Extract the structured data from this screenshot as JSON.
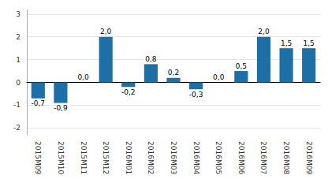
{
  "chart_data": {
    "type": "bar",
    "categories": [
      "2015M09",
      "2015M10",
      "2015M11",
      "2015M12",
      "2016M01",
      "2016M02",
      "2016M03",
      "2016M04",
      "2016M05",
      "2016M06",
      "2016M07",
      "2016M08",
      "2016M09"
    ],
    "values": [
      -0.7,
      -0.9,
      0.0,
      2.0,
      -0.2,
      0.8,
      0.2,
      -0.3,
      0.0,
      0.5,
      2.0,
      1.5,
      1.5
    ],
    "value_labels": [
      "-0,7",
      "-0,9",
      "0,0",
      "2,0",
      "-0,2",
      "0,8",
      "0,2",
      "-0,3",
      "0,0",
      "0,5",
      "2,0",
      "1,5",
      "1,5"
    ],
    "color": "#1d6fa5",
    "ylim": [
      -2.3,
      3.2
    ],
    "yticks": [
      -2,
      -1,
      0,
      1,
      2,
      3
    ],
    "grid": true,
    "data_labels": true
  }
}
